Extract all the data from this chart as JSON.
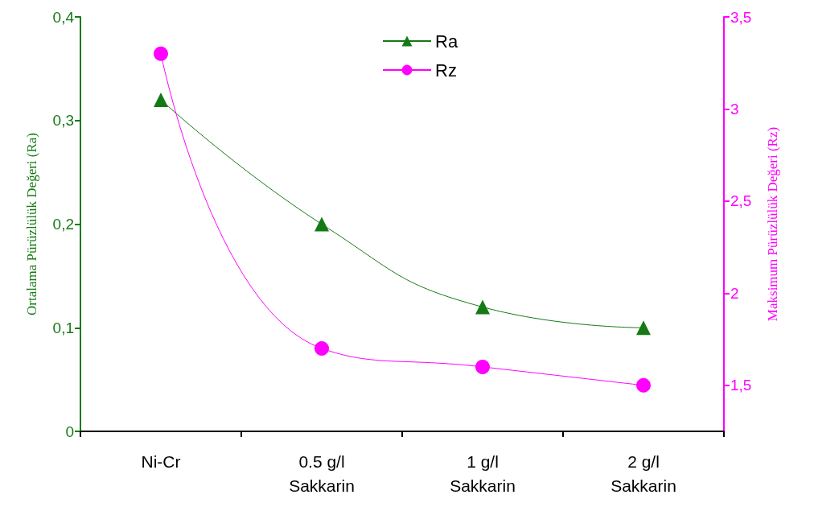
{
  "chart_data": {
    "type": "line",
    "ylabel": "Ortalama Pürüzlülük Değeri (Ra)",
    "y2label": "Maksimum Pürüzlülük Değeri (Rz)",
    "categories": [
      "Ni-Cr",
      "0.5 g/l\nSakkarin",
      "1 g/l\nSakkarin",
      "2 g/l\nSakkarin"
    ],
    "series": [
      {
        "name": "Ra",
        "color": "#157a15",
        "values": [
          0.32,
          0.2,
          0.12,
          0.1
        ],
        "marker": "triangle"
      },
      {
        "name": "Rz",
        "color": "#ff00ff",
        "values": [
          3.3,
          1.7,
          1.6,
          1.5
        ],
        "marker": "circle",
        "axis": "y2"
      }
    ],
    "ylim": [
      0,
      0.4
    ],
    "yticks": [
      {
        "value": 0,
        "label": "0"
      },
      {
        "value": 0.1,
        "label": "0,1"
      },
      {
        "value": 0.2,
        "label": "0,2"
      },
      {
        "value": 0.3,
        "label": "0,3"
      },
      {
        "value": 0.4,
        "label": "0,4"
      }
    ],
    "y2lim": [
      1.25,
      3.5
    ],
    "y2ticks": [
      {
        "value": 1.5,
        "label": "1,5"
      },
      {
        "value": 2,
        "label": "2"
      },
      {
        "value": 2.5,
        "label": "2,5"
      },
      {
        "value": 3,
        "label": "3"
      },
      {
        "value": 3.5,
        "label": "3,5"
      }
    ],
    "legend": "top",
    "grid": false
  }
}
